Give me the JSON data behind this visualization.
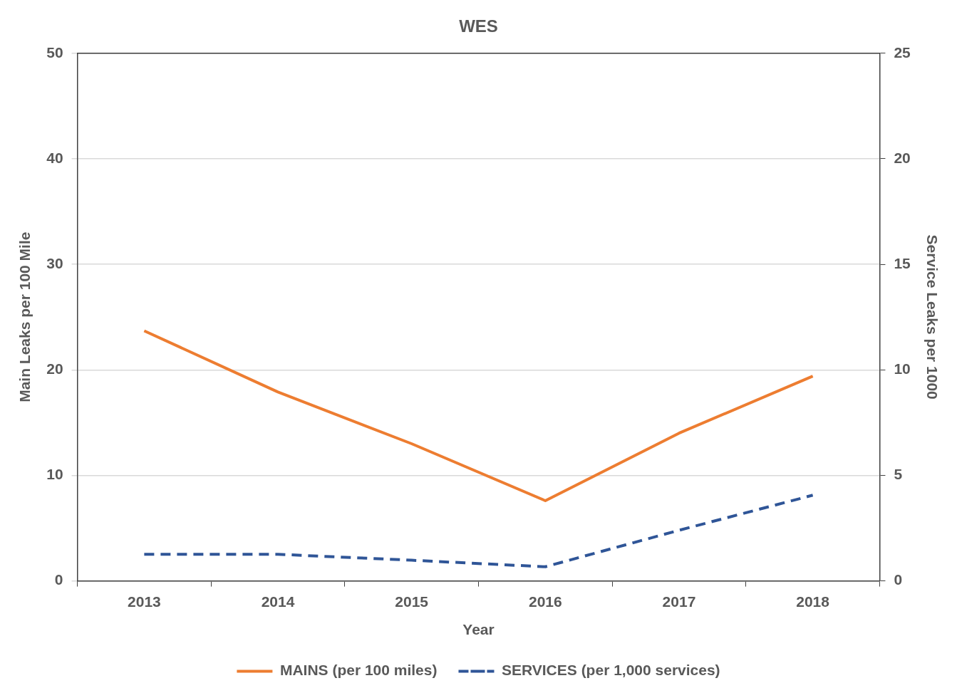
{
  "chart_data": {
    "type": "line",
    "title": "WES",
    "xlabel": "Year",
    "ylabel": "Main Leaks per 100 Mile",
    "y2label": "Service Leaks per 1000",
    "categories": [
      "2013",
      "2014",
      "2015",
      "2016",
      "2017",
      "2018"
    ],
    "series": [
      {
        "name": "MAINS (per 100 miles)",
        "color": "#ed7d31",
        "values": [
          23.7,
          17.9,
          13.0,
          7.6,
          14.0,
          19.4
        ]
      },
      {
        "name": "SERVICES (per 1,000 services)",
        "color": "#2f5597",
        "axis": "y2",
        "line_style": "dashed",
        "values": [
          1.26,
          1.26,
          0.98,
          0.67,
          2.4,
          4.06
        ]
      }
    ],
    "ylim": [
      0,
      50
    ],
    "yticks": [
      0,
      10,
      20,
      30,
      40,
      50
    ],
    "y2lim": [
      0,
      25
    ],
    "y2ticks": [
      0,
      5,
      10,
      15,
      20,
      25
    ],
    "grid": "y",
    "legend": "bottom",
    "marker": "none"
  }
}
